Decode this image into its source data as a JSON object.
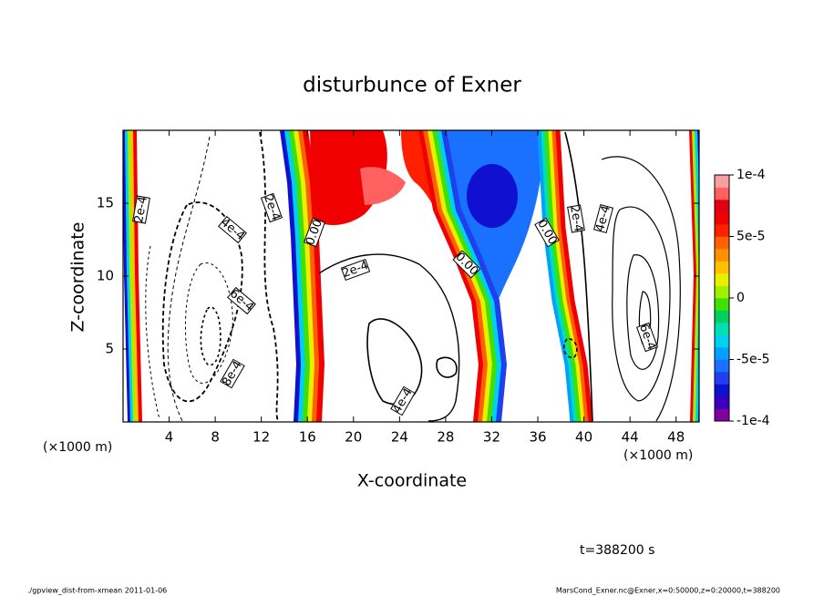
{
  "chart_data": {
    "type": "contour",
    "title": "disturbunce of Exner",
    "xlabel": "X-coordinate",
    "ylabel": "Z-coordinate",
    "x_unit": "(×1000 m)",
    "y_unit": "(×1000 m)",
    "xlim": [
      0,
      50
    ],
    "xticks": [
      4,
      8,
      12,
      16,
      20,
      24,
      28,
      32,
      36,
      40,
      44,
      48
    ],
    "ylim": [
      0,
      20
    ],
    "yticks": [
      5,
      10,
      15
    ],
    "colorbar": {
      "lim": [
        -0.0001,
        0.0001
      ],
      "ticks": [
        {
          "value": 0.0001,
          "label": "1e-4"
        },
        {
          "value": 5e-05,
          "label": "5e-5"
        },
        0,
        {
          "value": -5e-05,
          "label": "-5e-5"
        },
        {
          "value": -0.0001,
          "label": "-1e-4"
        }
      ],
      "colors": [
        "#8000a0",
        "#3a00c0",
        "#1010d0",
        "#2040f0",
        "#1a70ff",
        "#00a0ff",
        "#00d0f0",
        "#00e0b0",
        "#00d060",
        "#40e000",
        "#a0f000",
        "#e8f000",
        "#ffc000",
        "#ff9000",
        "#ff6000",
        "#ff2000",
        "#f00000",
        "#e00010",
        "#ff6060",
        "#f8a0a0"
      ]
    },
    "contour_labels": [
      "2e-4",
      "4e-4",
      "2e-4",
      "0.00",
      "6e-4",
      "8e-4",
      "2e-4",
      "4e-4",
      "0.00",
      "0.00",
      "2e-4",
      "4e-4",
      "6e-4"
    ],
    "time_label": "t=388200 s",
    "footer_left": "./gpview_dist-from-xmean  2011-01-06",
    "footer_right": "MarsCond_Exner.nc@Exner,x=0:50000,z=0:20000,t=388200"
  }
}
